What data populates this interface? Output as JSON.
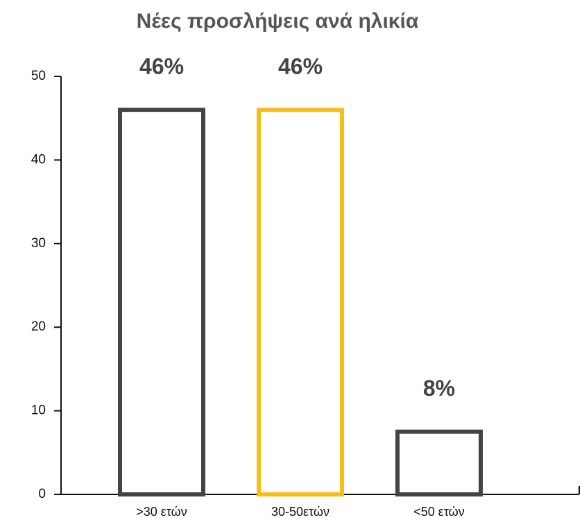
{
  "chart_data": {
    "type": "bar",
    "title": "Νέες προσλήψεις ανά ηλικία",
    "categories": [
      ">30 ετών",
      "30-50ετών",
      "<50 ετών"
    ],
    "values": [
      46,
      46,
      7.5
    ],
    "value_labels": [
      "46%",
      "46%",
      "8%"
    ],
    "colors": [
      "#444444",
      "#fbbc1a",
      "#444444"
    ],
    "ylim": [
      0,
      50
    ],
    "yticks": [
      0,
      10,
      20,
      30,
      40,
      50
    ]
  }
}
